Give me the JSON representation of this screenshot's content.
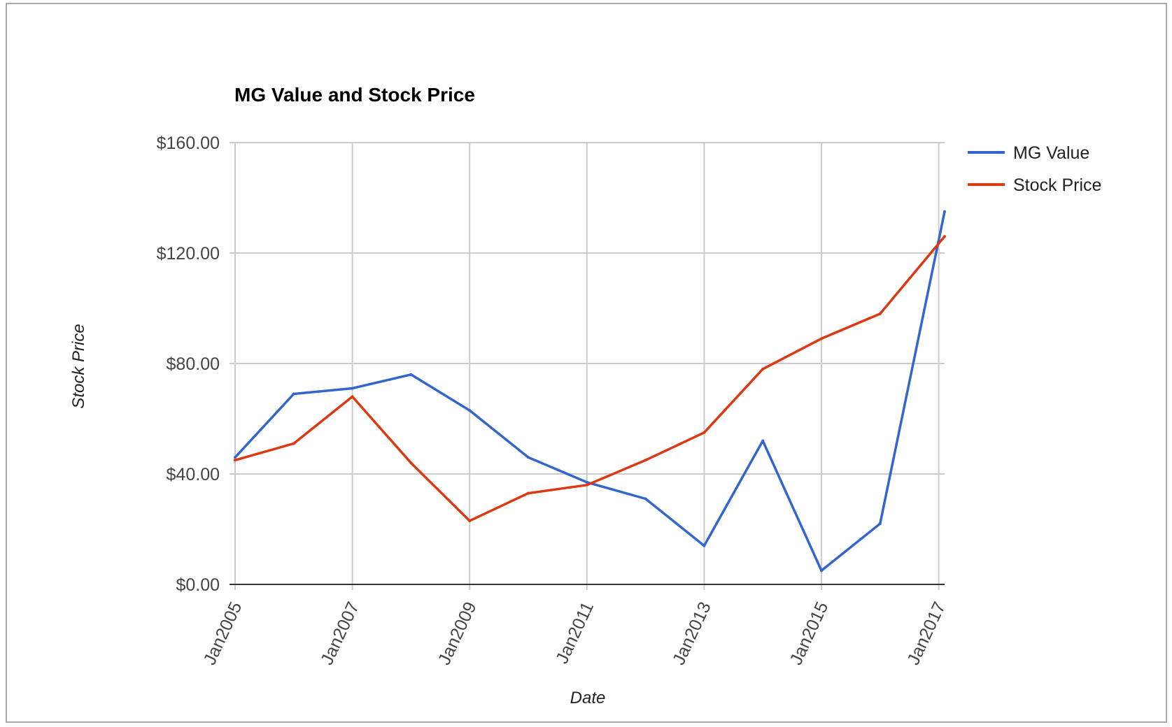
{
  "chart_data": {
    "type": "line",
    "title": "MG Value and Stock Price",
    "xlabel": "Date",
    "ylabel": "Stock Price",
    "ylim": [
      0,
      160
    ],
    "y_ticks": [
      "$0.00",
      "$40.00",
      "$80.00",
      "$120.00",
      "$160.00"
    ],
    "x_ticks": [
      "Jan2005",
      "Jan2007",
      "Jan2009",
      "Jan2011",
      "Jan2013",
      "Jan2015",
      "Jan2017"
    ],
    "x_tick_years": [
      2005,
      2007,
      2009,
      2011,
      2013,
      2015,
      2017
    ],
    "xlim": [
      2005,
      2017.1
    ],
    "grid": true,
    "legend_position": "right",
    "x": [
      2005,
      2006,
      2007,
      2008,
      2009,
      2010,
      2011,
      2012,
      2013,
      2014,
      2015,
      2016,
      2017.1
    ],
    "series": [
      {
        "name": "MG Value",
        "color": "#3366cc",
        "values": [
          46,
          69,
          71,
          76,
          63,
          46,
          37,
          31,
          14,
          52,
          5,
          22,
          135
        ]
      },
      {
        "name": "Stock Price",
        "color": "#dc3912",
        "values": [
          45,
          51,
          68,
          44,
          23,
          33,
          36,
          45,
          55,
          78,
          89,
          98,
          126
        ]
      }
    ]
  }
}
